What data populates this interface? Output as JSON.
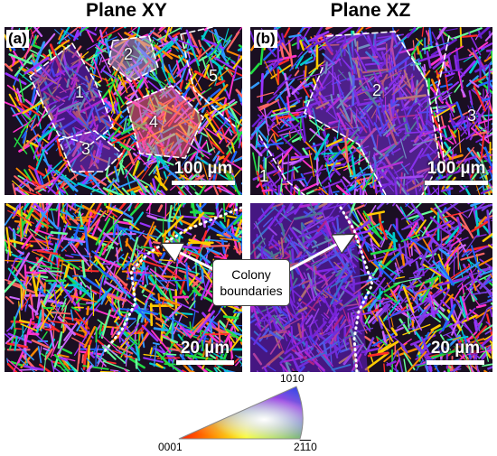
{
  "titles": {
    "left": "Plane XY",
    "right": "Plane XZ"
  },
  "panels": {
    "a": {
      "tag": "(a)",
      "scale": "100 µm",
      "regions": [
        "1",
        "2",
        "3",
        "4",
        "5"
      ]
    },
    "b": {
      "tag": "(b)",
      "scale": "100 µm",
      "regions": [
        "1",
        "2",
        "3"
      ]
    },
    "c": {
      "scale": "20 µm"
    },
    "d": {
      "scale": "20 µm"
    }
  },
  "callout": {
    "line1": "Colony",
    "line2": "boundaries"
  },
  "ipf": {
    "corner_bottom_left": "0001",
    "corner_top": "10",
    "corner_top_overline": "1",
    "corner_top_end": "0",
    "corner_right": "2",
    "corner_right_overline": "11",
    "corner_right_end": "0"
  },
  "colors": {
    "red": "#ff0000",
    "green": "#00ff00",
    "blue": "#0000ff",
    "purple": "#8a2be2"
  }
}
